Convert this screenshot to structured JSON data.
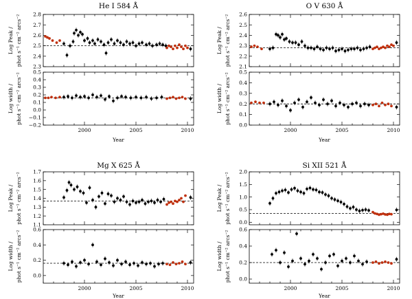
{
  "chart_data": [
    {
      "type": "scatter",
      "title": "He I 584 Å",
      "xlabel": "Year",
      "xlim": [
        1996,
        2010.6
      ],
      "xticks": [
        2000,
        2005,
        2010
      ],
      "top": {
        "ylabel_line1": "Log Peak /",
        "ylabel_line2": "phot s⁻¹ cm⁻² arcs⁻²",
        "ylim": [
          2.3,
          2.8
        ],
        "yticks": [
          "2.3",
          "2.4",
          "2.5",
          "2.6",
          "2.7",
          "2.8"
        ],
        "reference": 2.5,
        "series": [
          {
            "name": "",
            "color": "#000000",
            "x": [
              1998.0,
              1998.3,
              1998.6,
              1998.9,
              1999.0,
              1999.2,
              1999.4,
              1999.6,
              1999.8,
              2000.0,
              2000.3,
              2000.5,
              2000.8,
              2001.0,
              2001.3,
              2001.6,
              2001.9,
              2002.1,
              2002.3,
              2002.6,
              2002.9,
              2003.2,
              2003.5,
              2003.8,
              2004.1,
              2004.4,
              2004.7,
              2005.0,
              2005.3,
              2005.6,
              2006.0,
              2006.3,
              2006.6,
              2007.0,
              2007.3,
              2007.6,
              2007.9,
              2010.3
            ],
            "y": [
              2.52,
              2.41,
              2.5,
              2.54,
              2.62,
              2.65,
              2.6,
              2.63,
              2.61,
              2.55,
              2.57,
              2.53,
              2.55,
              2.52,
              2.56,
              2.54,
              2.51,
              2.43,
              2.53,
              2.56,
              2.52,
              2.55,
              2.53,
              2.51,
              2.54,
              2.52,
              2.53,
              2.5,
              2.52,
              2.53,
              2.51,
              2.52,
              2.5,
              2.51,
              2.52,
              2.51,
              2.5,
              2.47
            ]
          },
          {
            "name": "",
            "color": "#c0300e",
            "x": [
              1996.2,
              1996.4,
              1996.6,
              1996.9,
              1997.3,
              1997.6,
              2008.0,
              2008.2,
              2008.4,
              2008.6,
              2008.8,
              2009.0,
              2009.2,
              2009.4,
              2009.6,
              2009.8,
              2010.0
            ],
            "y": [
              2.59,
              2.58,
              2.57,
              2.55,
              2.53,
              2.55,
              2.48,
              2.5,
              2.49,
              2.47,
              2.5,
              2.48,
              2.51,
              2.49,
              2.47,
              2.5,
              2.48
            ]
          }
        ]
      },
      "bottom": {
        "ylabel_line1": "Log width /",
        "ylabel_line2": "phot s⁻¹ cm⁻² arcs⁻²",
        "ylim": [
          -0.2,
          0.5
        ],
        "yticks": [
          "−0.2",
          "−0.1",
          "0.0",
          "0.1",
          "0.2",
          "0.3",
          "0.4",
          "0.5"
        ],
        "reference": 0.16,
        "series": [
          {
            "name": "",
            "color": "#000000",
            "x": [
              1998.0,
              1998.4,
              1998.8,
              1999.2,
              1999.6,
              2000.0,
              2000.4,
              2000.8,
              2001.2,
              2001.6,
              2002.0,
              2002.4,
              2002.8,
              2003.2,
              2003.6,
              2004.0,
              2004.5,
              2005.0,
              2005.5,
              2006.0,
              2006.5,
              2007.0,
              2007.5,
              2010.3
            ],
            "y": [
              0.17,
              0.18,
              0.16,
              0.19,
              0.17,
              0.18,
              0.16,
              0.2,
              0.17,
              0.19,
              0.14,
              0.18,
              0.12,
              0.16,
              0.18,
              0.17,
              0.16,
              0.17,
              0.16,
              0.17,
              0.15,
              0.16,
              0.17,
              0.15
            ]
          },
          {
            "name": "",
            "color": "#c0300e",
            "x": [
              1996.2,
              1996.5,
              1996.8,
              1997.2,
              1997.6,
              2008.0,
              2008.3,
              2008.6,
              2008.9,
              2009.2,
              2009.5,
              2009.8
            ],
            "y": [
              0.16,
              0.16,
              0.17,
              0.16,
              0.17,
              0.15,
              0.16,
              0.17,
              0.15,
              0.16,
              0.17,
              0.15
            ]
          }
        ]
      }
    },
    {
      "type": "scatter",
      "title": "O V 630 Å",
      "xlabel": "Year",
      "xlim": [
        1996,
        2010.6
      ],
      "xticks": [
        2000,
        2005,
        2010
      ],
      "top": {
        "ylabel_line1": "Log Peak /",
        "ylabel_line2": "phot s⁻¹ cm⁻² arcs⁻²",
        "ylim": [
          2.1,
          2.6
        ],
        "yticks": [
          "2.1",
          "2.2",
          "2.3",
          "2.4",
          "2.5",
          "2.6"
        ],
        "reference": 2.28,
        "series": [
          {
            "name": "",
            "color": "#000000",
            "x": [
              1998.0,
              1998.3,
              1998.6,
              1998.8,
              1999.0,
              1999.2,
              1999.4,
              1999.6,
              1999.9,
              2000.2,
              2000.5,
              2000.8,
              2001.1,
              2001.4,
              2001.7,
              2002.0,
              2002.3,
              2002.6,
              2002.9,
              2003.2,
              2003.5,
              2003.8,
              2004.1,
              2004.4,
              2004.7,
              2005.0,
              2005.3,
              2005.6,
              2005.9,
              2006.2,
              2006.5,
              2006.8,
              2007.1,
              2007.4,
              2007.7,
              2010.3
            ],
            "y": [
              2.27,
              2.28,
              2.41,
              2.4,
              2.38,
              2.41,
              2.36,
              2.37,
              2.34,
              2.33,
              2.33,
              2.31,
              2.34,
              2.3,
              2.28,
              2.28,
              2.27,
              2.29,
              2.27,
              2.26,
              2.28,
              2.27,
              2.28,
              2.25,
              2.26,
              2.27,
              2.25,
              2.26,
              2.27,
              2.27,
              2.28,
              2.26,
              2.27,
              2.28,
              2.29,
              2.33
            ]
          },
          {
            "name": "",
            "color": "#c0300e",
            "x": [
              1996.2,
              1996.5,
              1996.8,
              1997.2,
              2008.0,
              2008.2,
              2008.4,
              2008.6,
              2008.8,
              2009.0,
              2009.2,
              2009.4,
              2009.6,
              2009.8,
              2010.0
            ],
            "y": [
              2.29,
              2.3,
              2.29,
              2.27,
              2.27,
              2.28,
              2.29,
              2.27,
              2.28,
              2.29,
              2.28,
              2.3,
              2.29,
              2.31,
              2.3
            ]
          }
        ]
      },
      "bottom": {
        "ylabel_line1": "Log width /",
        "ylabel_line2": "phot s⁻¹ cm⁻² arcs⁻²",
        "ylim": [
          0.0,
          0.5
        ],
        "yticks": [
          "0.0",
          "0.1",
          "0.2",
          "0.3",
          "0.4",
          "0.5"
        ],
        "reference": 0.2,
        "series": [
          {
            "name": "",
            "color": "#000000",
            "x": [
              1998.0,
              1998.4,
              1998.8,
              1999.2,
              1999.6,
              2000.0,
              2000.4,
              2000.8,
              2001.2,
              2001.6,
              2002.0,
              2002.4,
              2002.8,
              2003.2,
              2003.6,
              2004.0,
              2004.4,
              2004.8,
              2005.2,
              2005.6,
              2006.0,
              2006.4,
              2006.8,
              2007.2,
              2007.6,
              2010.3
            ],
            "y": [
              0.2,
              0.22,
              0.19,
              0.23,
              0.18,
              0.14,
              0.21,
              0.24,
              0.17,
              0.22,
              0.26,
              0.21,
              0.19,
              0.24,
              0.2,
              0.23,
              0.18,
              0.21,
              0.19,
              0.17,
              0.2,
              0.21,
              0.18,
              0.2,
              0.19,
              0.17
            ]
          },
          {
            "name": "",
            "color": "#c0300e",
            "x": [
              1996.2,
              1996.6,
              1997.0,
              1997.4,
              2008.0,
              2008.3,
              2008.6,
              2008.9,
              2009.2,
              2009.5,
              2009.8
            ],
            "y": [
              0.21,
              0.22,
              0.21,
              0.21,
              0.19,
              0.2,
              0.18,
              0.21,
              0.19,
              0.2,
              0.18
            ]
          }
        ]
      }
    },
    {
      "type": "scatter",
      "title": "Mg X 625 Å",
      "xlabel": "Year",
      "xlim": [
        1996,
        2010.6
      ],
      "xticks": [
        2000,
        2005,
        2010
      ],
      "top": {
        "ylabel_line1": "Log Peak /",
        "ylabel_line2": "phot s⁻¹ cm⁻² arcs⁻²",
        "ylim": [
          1.1,
          1.7
        ],
        "yticks": [
          "1.1",
          "1.2",
          "1.3",
          "1.4",
          "1.5",
          "1.6",
          "1.7"
        ],
        "reference": 1.37,
        "series": [
          {
            "name": "",
            "color": "#000000",
            "x": [
              1998.0,
              1998.3,
              1998.5,
              1998.7,
              1999.0,
              1999.3,
              1999.6,
              1999.9,
              2000.2,
              2000.5,
              2000.8,
              2001.1,
              2001.4,
              2001.7,
              2002.0,
              2002.3,
              2002.6,
              2002.9,
              2003.2,
              2003.5,
              2003.8,
              2004.1,
              2004.4,
              2004.7,
              2005.0,
              2005.3,
              2005.6,
              2005.9,
              2006.2,
              2006.5,
              2006.8,
              2007.1,
              2007.4,
              2007.7,
              2010.3
            ],
            "y": [
              1.41,
              1.49,
              1.58,
              1.55,
              1.5,
              1.53,
              1.48,
              1.46,
              1.35,
              1.52,
              1.38,
              1.3,
              1.42,
              1.46,
              1.34,
              1.45,
              1.43,
              1.36,
              1.4,
              1.38,
              1.42,
              1.36,
              1.33,
              1.37,
              1.35,
              1.36,
              1.38,
              1.34,
              1.36,
              1.37,
              1.35,
              1.38,
              1.36,
              1.39,
              1.41
            ]
          },
          {
            "name": "",
            "color": "#c0300e",
            "x": [
              2008.0,
              2008.2,
              2008.4,
              2008.6,
              2008.8,
              2009.0,
              2009.2,
              2009.4,
              2009.6,
              2009.8
            ],
            "y": [
              1.33,
              1.35,
              1.36,
              1.34,
              1.37,
              1.36,
              1.38,
              1.4,
              1.36,
              1.43
            ]
          }
        ]
      },
      "bottom": {
        "ylabel_line1": "Log width /",
        "ylabel_line2": "phot s⁻¹ cm⁻² arcs⁻²",
        "ylim": [
          -0.1,
          0.6
        ],
        "yticks": [
          "0.0",
          "0.2",
          "0.4",
          "0.6"
        ],
        "reference": 0.16,
        "series": [
          {
            "name": "",
            "color": "#000000",
            "x": [
              1998.0,
              1998.4,
              1998.8,
              1999.2,
              1999.6,
              2000.0,
              2000.4,
              2000.8,
              2001.2,
              2001.6,
              2002.0,
              2002.4,
              2002.8,
              2003.2,
              2003.6,
              2004.0,
              2004.4,
              2004.8,
              2005.2,
              2005.6,
              2006.0,
              2006.4,
              2006.8,
              2007.2,
              2007.6,
              2010.3
            ],
            "y": [
              0.16,
              0.14,
              0.18,
              0.12,
              0.17,
              0.2,
              0.15,
              0.4,
              0.18,
              0.14,
              0.22,
              0.17,
              0.13,
              0.2,
              0.15,
              0.18,
              0.14,
              0.16,
              0.13,
              0.17,
              0.15,
              0.16,
              0.12,
              0.15,
              0.16,
              0.17
            ]
          },
          {
            "name": "",
            "color": "#c0300e",
            "x": [
              2008.0,
              2008.3,
              2008.6,
              2008.9,
              2009.2,
              2009.5,
              2009.8
            ],
            "y": [
              0.15,
              0.14,
              0.17,
              0.15,
              0.16,
              0.18,
              0.15
            ]
          }
        ]
      }
    },
    {
      "type": "scatter",
      "title": "Si XII 521 Å",
      "xlabel": "Year",
      "xlim": [
        1996,
        2010.6
      ],
      "xticks": [
        2000,
        2005,
        2010
      ],
      "top": {
        "ylabel_line1": "Log Peak /",
        "ylabel_line2": "phot s⁻¹ cm⁻² arcs⁻²",
        "ylim": [
          -0.1,
          2.0
        ],
        "yticks": [
          "0.0",
          "0.5",
          "1.0",
          "1.5",
          "2.0"
        ],
        "reference": 0.35,
        "series": [
          {
            "name": "",
            "color": "#000000",
            "x": [
              1998.0,
              1998.3,
              1998.6,
              1998.9,
              1999.2,
              1999.5,
              1999.8,
              2000.1,
              2000.4,
              2000.7,
              2001.0,
              2001.3,
              2001.6,
              2001.9,
              2002.2,
              2002.5,
              2002.8,
              2003.1,
              2003.4,
              2003.7,
              2004.0,
              2004.3,
              2004.6,
              2004.9,
              2005.2,
              2005.5,
              2005.8,
              2006.1,
              2006.4,
              2006.7,
              2007.0,
              2007.3,
              2007.6,
              2010.3
            ],
            "y": [
              0.75,
              0.95,
              1.15,
              1.2,
              1.25,
              1.28,
              1.18,
              1.3,
              1.35,
              1.25,
              1.2,
              1.15,
              1.32,
              1.36,
              1.3,
              1.28,
              1.2,
              1.18,
              1.1,
              1.05,
              0.95,
              0.9,
              0.85,
              0.8,
              0.72,
              0.62,
              0.55,
              0.6,
              0.5,
              0.45,
              0.48,
              0.5,
              0.47,
              0.49
            ]
          },
          {
            "name": "",
            "color": "#c0300e",
            "x": [
              2008.0,
              2008.2,
              2008.4,
              2008.6,
              2008.8,
              2009.0,
              2009.2,
              2009.4,
              2009.6,
              2009.8
            ],
            "y": [
              0.4,
              0.35,
              0.33,
              0.3,
              0.32,
              0.34,
              0.31,
              0.3,
              0.33,
              0.32
            ]
          }
        ]
      },
      "bottom": {
        "ylabel_line1": "Log width /",
        "ylabel_line2": "phot s⁻¹ cm⁻² arcs⁻²",
        "ylim": [
          -0.05,
          0.6
        ],
        "yticks": [
          "0.0",
          "0.2",
          "0.4",
          "0.6"
        ],
        "reference": 0.2,
        "series": [
          {
            "name": "",
            "color": "#000000",
            "x": [
              1998.2,
              1998.6,
              1999.0,
              1999.4,
              1999.8,
              2000.2,
              2000.6,
              2001.0,
              2001.4,
              2001.8,
              2002.2,
              2002.6,
              2003.0,
              2003.4,
              2003.8,
              2004.2,
              2004.6,
              2005.0,
              2005.4,
              2005.8,
              2006.2,
              2006.6,
              2007.0,
              2007.4,
              2010.3
            ],
            "y": [
              0.3,
              0.35,
              0.2,
              0.32,
              0.15,
              0.22,
              0.55,
              0.25,
              0.18,
              0.22,
              0.3,
              0.25,
              0.12,
              0.2,
              0.28,
              0.3,
              0.16,
              0.22,
              0.25,
              0.2,
              0.28,
              0.22,
              0.18,
              0.21,
              0.24
            ]
          },
          {
            "name": "",
            "color": "#c0300e",
            "x": [
              2008.0,
              2008.3,
              2008.6,
              2008.9,
              2009.2,
              2009.5,
              2009.8
            ],
            "y": [
              0.2,
              0.21,
              0.19,
              0.2,
              0.21,
              0.2,
              0.19
            ]
          }
        ]
      }
    }
  ]
}
